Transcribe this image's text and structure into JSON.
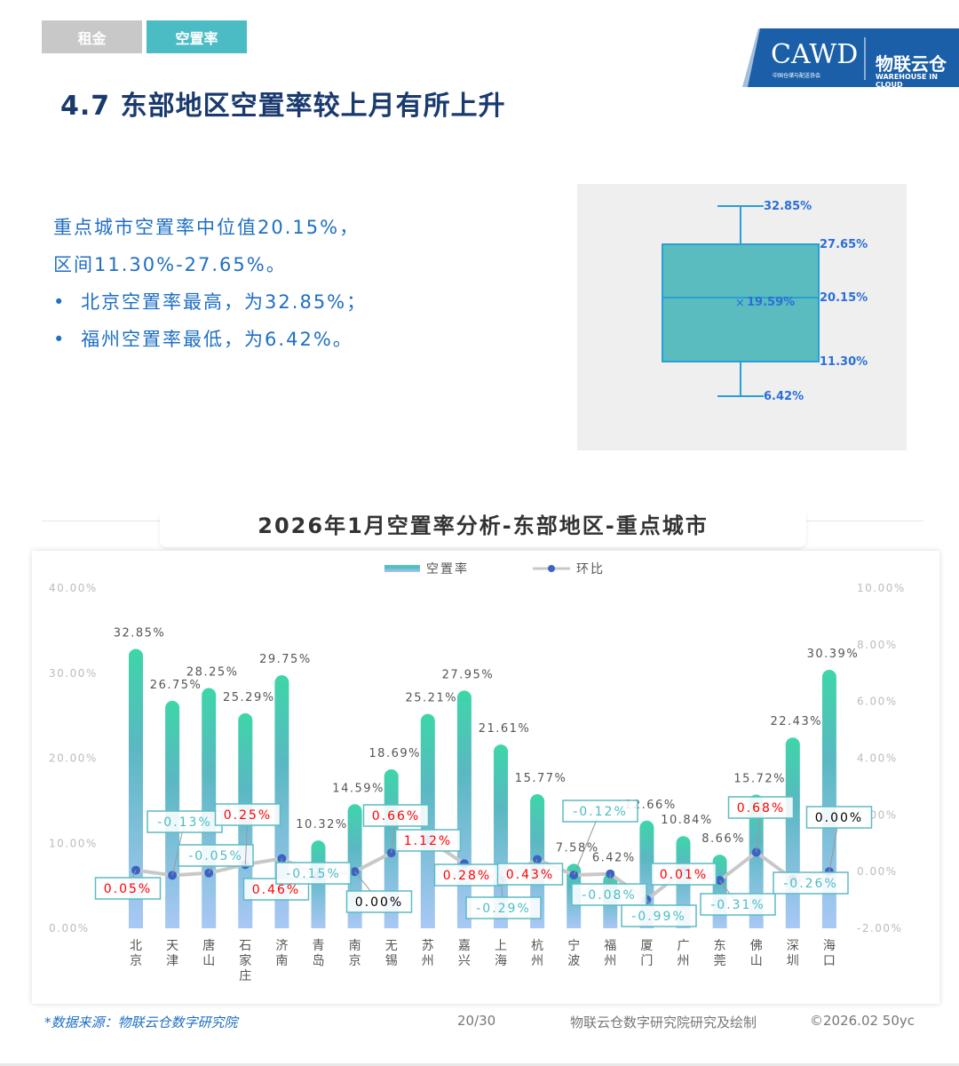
{
  "tabs": [
    {
      "label": "租金",
      "active": false
    },
    {
      "label": "空置率",
      "active": true
    }
  ],
  "logo": {
    "text": "CAWD",
    "subtext": "中国仓储与配送协会",
    "partner": "物联云仓",
    "partner_sub": "WAREHOUSE IN CLOUD"
  },
  "page_title": "4.7 东部地区空置率较上月有所上升",
  "summary": {
    "line1": "重点城市空置率中位值20.15%，",
    "line2": "区间11.30%-27.65%。",
    "bullets": [
      "北京空置率最高，为32.85%；",
      "福州空置率最低，为6.42%。"
    ]
  },
  "boxplot": {
    "max": "32.85%",
    "q3": "27.65%",
    "median": "20.15%",
    "mean": "19.59%",
    "q1": "11.30%",
    "min": "6.42%",
    "values": {
      "max": 32.85,
      "q3": 27.65,
      "median": 20.15,
      "mean": 19.59,
      "q1": 11.3,
      "min": 6.42
    },
    "color": "#5bbcc0"
  },
  "chart_data": {
    "type": "bar+line",
    "title": "2026年1月空置率分析-东部地区-重点城市",
    "categories": [
      "北京",
      "天津",
      "唐山",
      "石家庄",
      "济南",
      "青岛",
      "南京",
      "无锡",
      "苏州",
      "嘉兴",
      "上海",
      "杭州",
      "宁波",
      "福州",
      "厦门",
      "广州",
      "东莞",
      "佛山",
      "深圳",
      "海口"
    ],
    "series": [
      {
        "name": "空置率",
        "type": "bar",
        "axis": "left",
        "values": [
          32.85,
          26.75,
          28.25,
          25.29,
          29.75,
          10.32,
          14.59,
          18.69,
          25.21,
          27.95,
          21.61,
          15.77,
          7.58,
          6.42,
          12.66,
          10.84,
          8.66,
          15.72,
          22.43,
          30.39
        ],
        "labels": [
          "32.85%",
          "26.75%",
          "28.25%",
          "25.29%",
          "29.75%",
          "10.32%",
          "14.59%",
          "18.69%",
          "25.21%",
          "27.95%",
          "21.61%",
          "15.77%",
          "7.58%",
          "6.42%",
          "12.66%",
          "10.84%",
          "8.66%",
          "15.72%",
          "22.43%",
          "30.39%"
        ]
      },
      {
        "name": "环比",
        "type": "line",
        "axis": "right",
        "values": [
          0.05,
          -0.13,
          -0.05,
          0.25,
          0.46,
          -0.15,
          0.0,
          0.66,
          1.12,
          0.28,
          -0.29,
          0.43,
          -0.12,
          -0.08,
          -0.99,
          0.01,
          -0.31,
          0.68,
          -0.26,
          0.0
        ],
        "labels": [
          "0.05%",
          "-0.13%",
          "-0.05%",
          "0.25%",
          "0.46%",
          "-0.15%",
          "0.00%",
          "0.66%",
          "1.12%",
          "0.28%",
          "-0.29%",
          "0.43%",
          "-0.12%",
          "-0.08%",
          "-0.99%",
          "0.01%",
          "-0.31%",
          "0.68%",
          "-0.26%",
          "0.00%"
        ]
      }
    ],
    "left_axis": {
      "ticks": [
        "0.00%",
        "10.00%",
        "20.00%",
        "30.00%",
        "40.00%"
      ],
      "range": [
        0,
        40
      ]
    },
    "right_axis": {
      "ticks": [
        "-2.00%",
        "0.00%",
        "2.00%",
        "4.00%",
        "6.00%",
        "8.00%",
        "10.00%"
      ],
      "range": [
        -2,
        10
      ]
    },
    "legend": "top-center",
    "colors": {
      "bar_top": "#3dd6a8",
      "bar_bottom": "#a9c8f5",
      "line": "#c8c8c8",
      "dot": "#3a63c4",
      "positive": "#ff0000",
      "negative": "#4bbcc4",
      "zero": "#000000"
    }
  },
  "footer": {
    "source": "*数据来源：物联云仓数字研究院",
    "page": "20/30",
    "credit": "物联云仓数字研究院研究及绘制",
    "copyright": "©2026.02 50yc"
  }
}
